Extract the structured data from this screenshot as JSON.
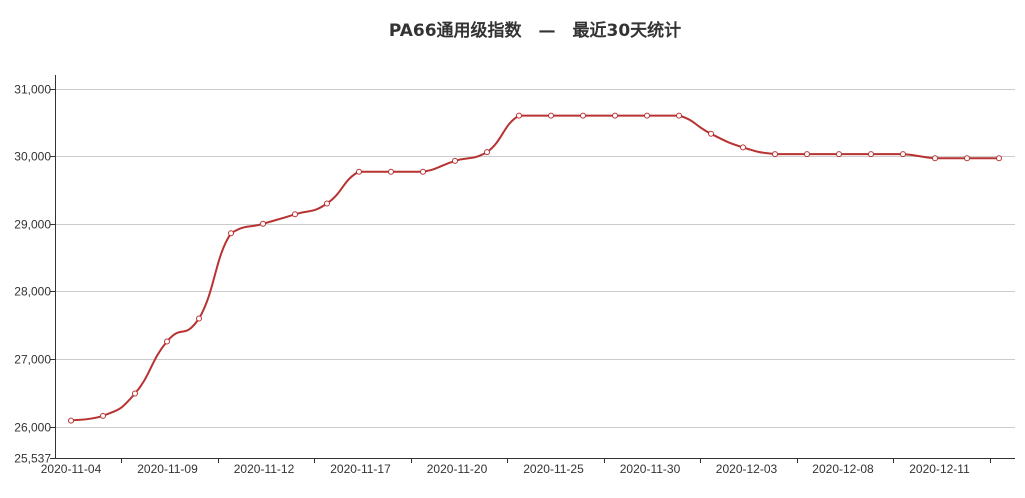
{
  "chart_data": {
    "type": "line",
    "title": "PA66通用级指数　—　最近30天统计",
    "xlabel": "",
    "ylabel": "",
    "ylim": [
      25537,
      31200
    ],
    "y_ticks": [
      {
        "value": 25537,
        "label": "25,537"
      },
      {
        "value": 26000,
        "label": "26,000"
      },
      {
        "value": 27000,
        "label": "27,000"
      },
      {
        "value": 28000,
        "label": "28,000"
      },
      {
        "value": 29000,
        "label": "29,000"
      },
      {
        "value": 30000,
        "label": "30,000"
      },
      {
        "value": 31000,
        "label": "31,000"
      }
    ],
    "x_tick_labels": [
      "2020-11-04",
      "2020-11-09",
      "2020-11-12",
      "2020-11-17",
      "2020-11-20",
      "2020-11-25",
      "2020-11-30",
      "2020-12-03",
      "2020-12-08",
      "2020-12-11"
    ],
    "grid": true,
    "legend": "none",
    "series": [
      {
        "color": "#b83232",
        "points": [
          {
            "x": "2020-11-04",
            "y": 26090
          },
          {
            "x": "2020-11-05",
            "y": 26160
          },
          {
            "x": "2020-11-06",
            "y": 26490
          },
          {
            "x": "2020-11-09",
            "y": 27260
          },
          {
            "x": "2020-11-10",
            "y": 27600
          },
          {
            "x": "2020-11-11",
            "y": 28860
          },
          {
            "x": "2020-11-12",
            "y": 29000
          },
          {
            "x": "2020-11-13",
            "y": 29140
          },
          {
            "x": "2020-11-16",
            "y": 29300
          },
          {
            "x": "2020-11-17",
            "y": 29770
          },
          {
            "x": "2020-11-18",
            "y": 29770
          },
          {
            "x": "2020-11-19",
            "y": 29770
          },
          {
            "x": "2020-11-20",
            "y": 29930
          },
          {
            "x": "2020-11-23",
            "y": 30060
          },
          {
            "x": "2020-11-24",
            "y": 30600
          },
          {
            "x": "2020-11-25",
            "y": 30600
          },
          {
            "x": "2020-11-26",
            "y": 30600
          },
          {
            "x": "2020-11-27",
            "y": 30600
          },
          {
            "x": "2020-11-30",
            "y": 30600
          },
          {
            "x": "2020-12-01",
            "y": 30600
          },
          {
            "x": "2020-12-02",
            "y": 30330
          },
          {
            "x": "2020-12-03",
            "y": 30130
          },
          {
            "x": "2020-12-04",
            "y": 30030
          },
          {
            "x": "2020-12-07",
            "y": 30030
          },
          {
            "x": "2020-12-08",
            "y": 30030
          },
          {
            "x": "2020-12-09",
            "y": 30030
          },
          {
            "x": "2020-12-10",
            "y": 30030
          },
          {
            "x": "2020-12-11",
            "y": 29970
          },
          {
            "x": "2020-12-14",
            "y": 29970
          },
          {
            "x": "2020-12-15",
            "y": 29970
          }
        ]
      }
    ]
  }
}
